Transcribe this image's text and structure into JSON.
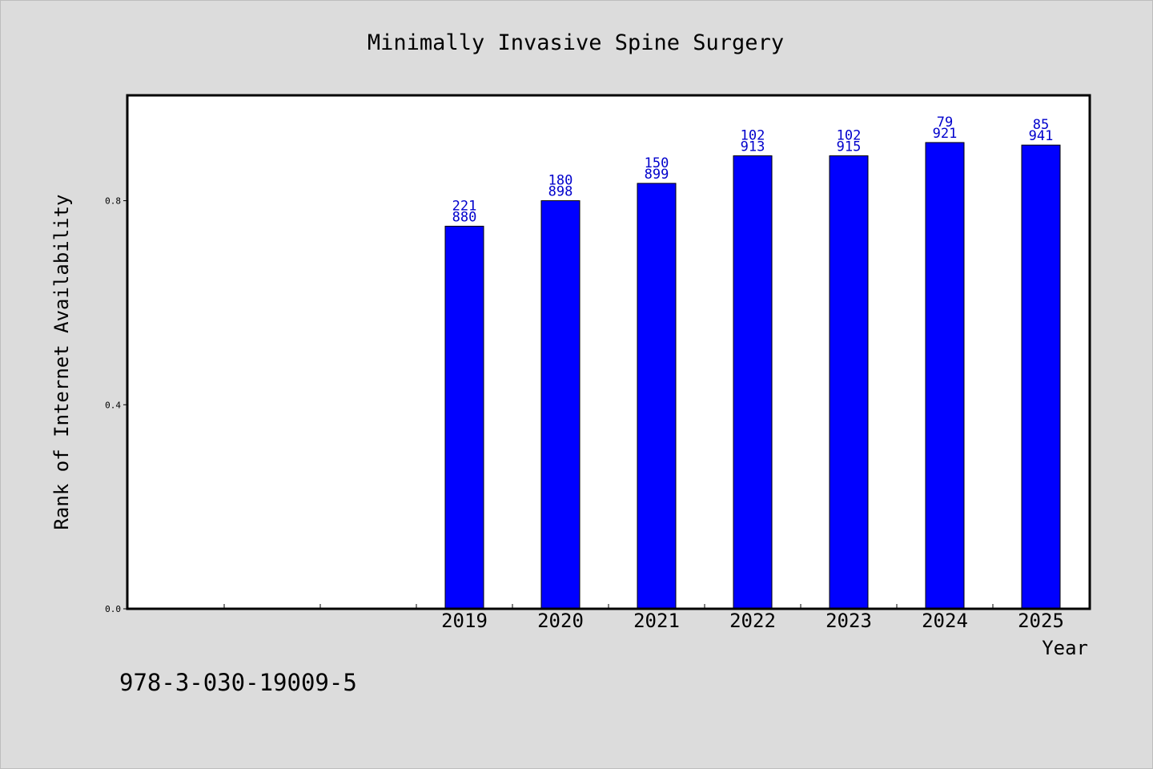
{
  "chart_data": {
    "type": "bar",
    "title": "Minimally Invasive Spine Surgery",
    "xlabel": "Year",
    "ylabel": "Rank of Internet Availability",
    "categories": [
      "",
      "",
      "",
      "2019",
      "2020",
      "2021",
      "2022",
      "2023",
      "2024",
      "2025"
    ],
    "values": [
      null,
      null,
      null,
      0.75,
      0.8,
      0.834,
      0.888,
      0.888,
      0.914,
      0.909
    ],
    "label_top": [
      "",
      "",
      "",
      "221",
      "180",
      "150",
      "102",
      "102",
      "79",
      "85"
    ],
    "label_bottom": [
      "",
      "",
      "",
      "880",
      "898",
      "899",
      "913",
      "915",
      "921",
      "941"
    ],
    "yticks": [
      "0.0",
      "0.4",
      "0.8"
    ],
    "ytick_values": [
      0,
      0.4,
      0.8
    ],
    "ylim": [
      0,
      1.005
    ],
    "grid": false,
    "bar_color": "#0000ff",
    "label_color": "#0000cc"
  },
  "footer": {
    "isbn": "978-3-030-19009-5"
  }
}
